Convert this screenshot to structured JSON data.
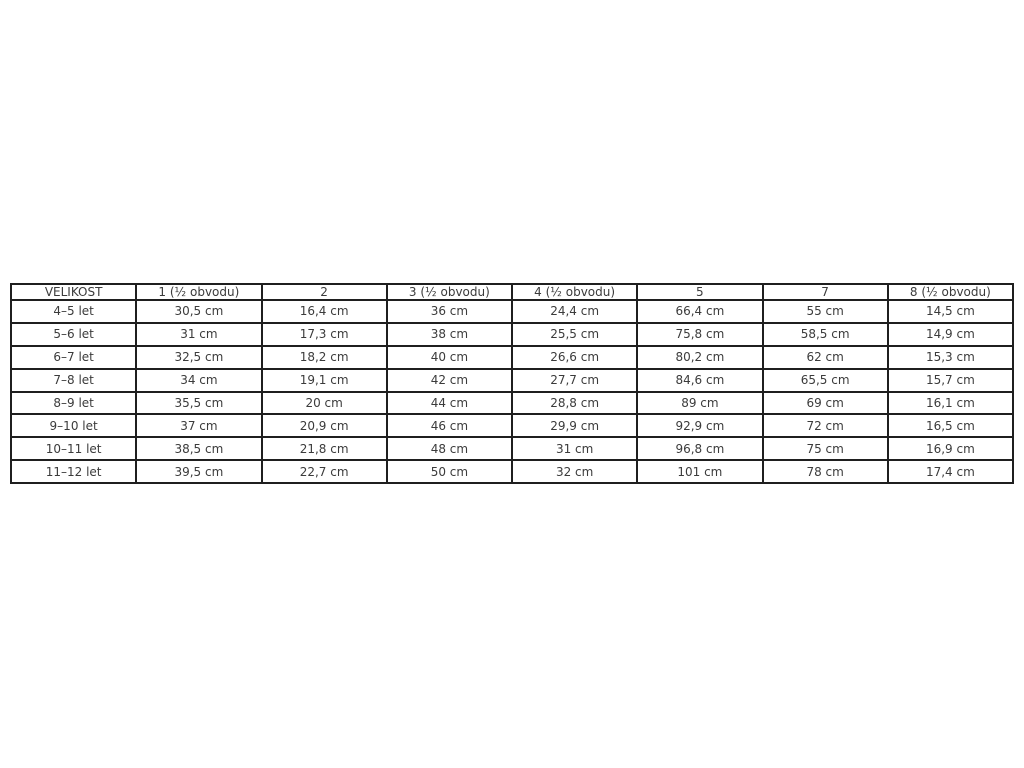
{
  "page": {
    "background_color": "#ffffff",
    "text_color": "#3b3b3b",
    "border_color": "#1f1f1f"
  },
  "chart_data": {
    "type": "table",
    "title": "",
    "columns": [
      "VELIKOST",
      "1 (½ obvodu)",
      "2",
      "3 (½ obvodu)",
      "4 (½ obvodu)",
      "5",
      "7",
      "8 (½ obvodu)"
    ],
    "rows": [
      [
        "4–5 let",
        "30,5 cm",
        "16,4 cm",
        "36 cm",
        "24,4 cm",
        "66,4 cm",
        "55 cm",
        "14,5 cm"
      ],
      [
        "5–6 let",
        "31 cm",
        "17,3 cm",
        "38 cm",
        "25,5 cm",
        "75,8 cm",
        "58,5 cm",
        "14,9 cm"
      ],
      [
        "6–7 let",
        "32,5 cm",
        "18,2 cm",
        "40 cm",
        "26,6 cm",
        "80,2 cm",
        "62 cm",
        "15,3 cm"
      ],
      [
        "7–8 let",
        "34 cm",
        "19,1 cm",
        "42 cm",
        "27,7 cm",
        "84,6 cm",
        "65,5 cm",
        "15,7 cm"
      ],
      [
        "8–9 let",
        "35,5 cm",
        "20 cm",
        "44 cm",
        "28,8 cm",
        "89 cm",
        "69 cm",
        "16,1 cm"
      ],
      [
        "9–10 let",
        "37 cm",
        "20,9 cm",
        "46 cm",
        "29,9 cm",
        "92,9 cm",
        "72 cm",
        "16,5 cm"
      ],
      [
        "10–11 let",
        "38,5 cm",
        "21,8 cm",
        "48 cm",
        "31 cm",
        "96,8 cm",
        "75 cm",
        "16,9 cm"
      ],
      [
        "11–12 let",
        "39,5 cm",
        "22,7 cm",
        "50 cm",
        "32 cm",
        "101 cm",
        "78 cm",
        "17,4 cm"
      ]
    ]
  }
}
